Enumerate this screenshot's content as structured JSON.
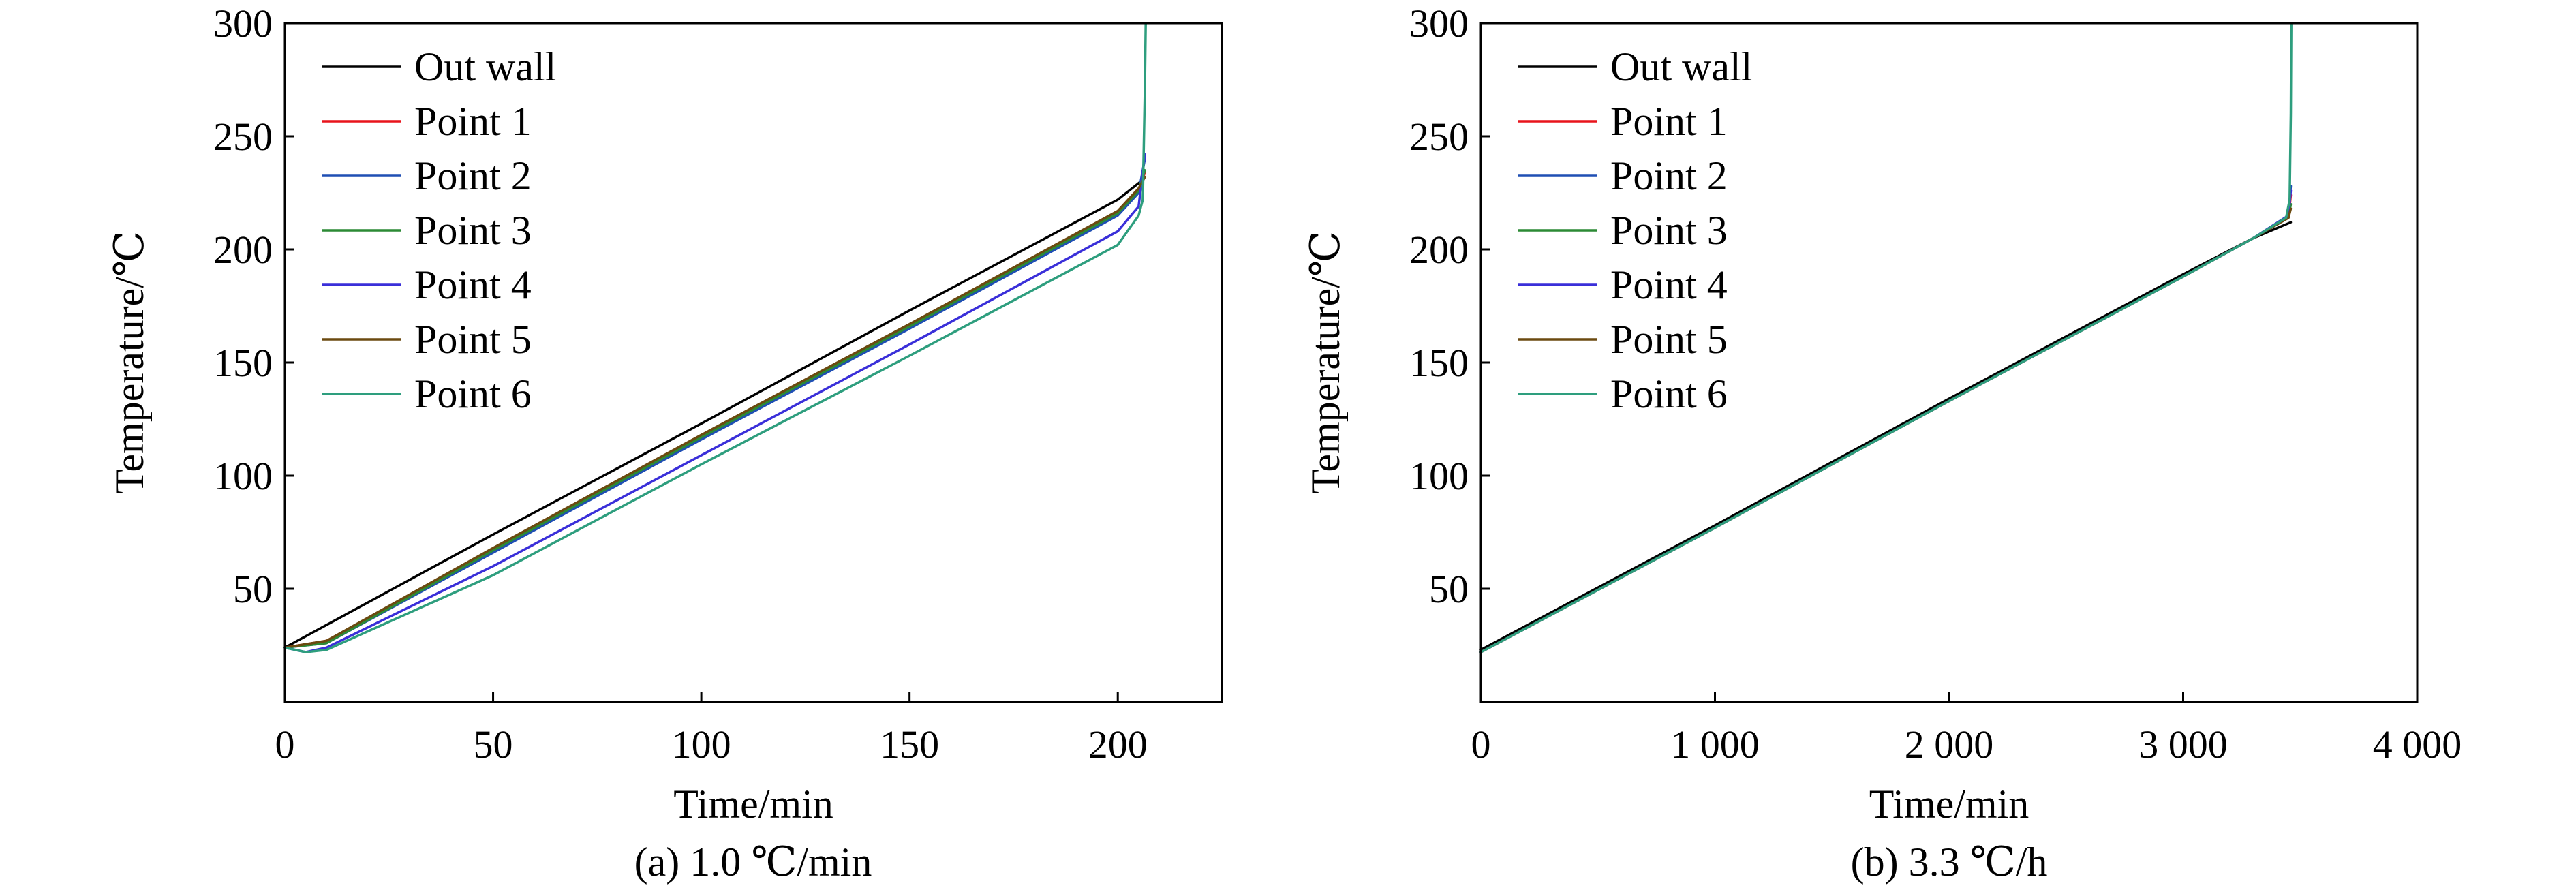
{
  "chart_data": [
    {
      "type": "line",
      "caption": "(a) 1.0 ℃/min",
      "xlabel": "Time/min",
      "ylabel": "Temperature/℃",
      "xlim": [
        0,
        225
      ],
      "ylim": [
        0,
        300
      ],
      "xticks": [
        0,
        50,
        100,
        150,
        200
      ],
      "xtick_labels": [
        "0",
        "50",
        "100",
        "150",
        "200"
      ],
      "yticks": [
        50,
        100,
        150,
        200,
        250,
        300
      ],
      "ytick_labels": [
        "50",
        "100",
        "150",
        "200",
        "250",
        "300"
      ],
      "legend_position": "top-left",
      "series": [
        {
          "name": "Out wall",
          "color": "#000000",
          "x": [
            0,
            50,
            100,
            150,
            200,
            205.5,
            206.5
          ],
          "y": [
            24,
            74,
            123,
            173,
            222,
            230,
            232
          ]
        },
        {
          "name": "Point 1",
          "color": "#e8141c",
          "x": [
            0,
            10,
            50,
            100,
            150,
            200,
            205,
            206.5
          ],
          "y": [
            24,
            27,
            67,
            117,
            166,
            216,
            226,
            234
          ]
        },
        {
          "name": "Point 2",
          "color": "#1f4fb4",
          "x": [
            0,
            10,
            50,
            100,
            150,
            200,
            205,
            206.5
          ],
          "y": [
            24,
            26,
            66,
            116,
            165,
            215,
            225,
            240
          ]
        },
        {
          "name": "Point 3",
          "color": "#2c8a35",
          "x": [
            0,
            10,
            50,
            100,
            150,
            200,
            205,
            206.5
          ],
          "y": [
            24,
            26,
            67,
            117,
            166,
            216,
            226,
            235
          ]
        },
        {
          "name": "Point 4",
          "color": "#3a2fd9",
          "x": [
            0,
            5,
            10,
            50,
            100,
            150,
            200,
            205,
            206.5
          ],
          "y": [
            24,
            22,
            24,
            60,
            109,
            158,
            208,
            219,
            242
          ]
        },
        {
          "name": "Point 5",
          "color": "#6b4a10",
          "x": [
            0,
            10,
            50,
            100,
            150,
            200,
            205,
            206.5
          ],
          "y": [
            24,
            27,
            68,
            118,
            167,
            217,
            227,
            232
          ]
        },
        {
          "name": "Point 6",
          "color": "#2e9e7e",
          "x": [
            0,
            5,
            10,
            50,
            100,
            150,
            200,
            205,
            206,
            206.5,
            206.7
          ],
          "y": [
            24,
            22,
            23,
            56,
            105,
            153,
            202,
            215,
            222,
            270,
            300
          ]
        }
      ]
    },
    {
      "type": "line",
      "caption": "(b) 3.3 ℃/h",
      "xlabel": "Time/min",
      "ylabel": "Temperature/℃",
      "xlim": [
        0,
        4000
      ],
      "ylim": [
        0,
        300
      ],
      "xticks": [
        0,
        1000,
        2000,
        3000,
        4000
      ],
      "xtick_labels": [
        "0",
        "1 000",
        "2 000",
        "3 000",
        "4 000"
      ],
      "yticks": [
        50,
        100,
        150,
        200,
        250,
        300
      ],
      "ytick_labels": [
        "50",
        "100",
        "150",
        "200",
        "250",
        "300"
      ],
      "legend_position": "top-left",
      "series": [
        {
          "name": "Out wall",
          "color": "#000000",
          "x": [
            0,
            1000,
            2000,
            3000,
            3300,
            3460
          ],
          "y": [
            23,
            78,
            134,
            189,
            205,
            212
          ]
        },
        {
          "name": "Point 1",
          "color": "#e8141c",
          "x": [
            0,
            1000,
            2000,
            3000,
            3300,
            3450,
            3460
          ],
          "y": [
            22,
            77,
            133,
            188,
            205,
            214,
            224
          ]
        },
        {
          "name": "Point 2",
          "color": "#1f4fb4",
          "x": [
            0,
            1000,
            2000,
            3000,
            3300,
            3450,
            3460
          ],
          "y": [
            22,
            77,
            133,
            188,
            205,
            215,
            228
          ]
        },
        {
          "name": "Point 3",
          "color": "#2c8a35",
          "x": [
            0,
            1000,
            2000,
            3000,
            3300,
            3450,
            3460
          ],
          "y": [
            22,
            77,
            133,
            188,
            205,
            214,
            220
          ]
        },
        {
          "name": "Point 4",
          "color": "#3a2fd9",
          "x": [
            0,
            1000,
            2000,
            3000,
            3300,
            3450,
            3460
          ],
          "y": [
            22,
            77,
            133,
            188,
            205,
            215,
            226
          ]
        },
        {
          "name": "Point 5",
          "color": "#6b4a10",
          "x": [
            0,
            1000,
            2000,
            3000,
            3300,
            3450,
            3460
          ],
          "y": [
            22,
            77,
            133,
            188,
            205,
            214,
            218
          ]
        },
        {
          "name": "Point 6",
          "color": "#2e9e7e",
          "x": [
            0,
            1000,
            2000,
            3000,
            3300,
            3440,
            3455,
            3460,
            3462
          ],
          "y": [
            22,
            77,
            133,
            188,
            205,
            214,
            222,
            260,
            300
          ]
        }
      ]
    }
  ]
}
